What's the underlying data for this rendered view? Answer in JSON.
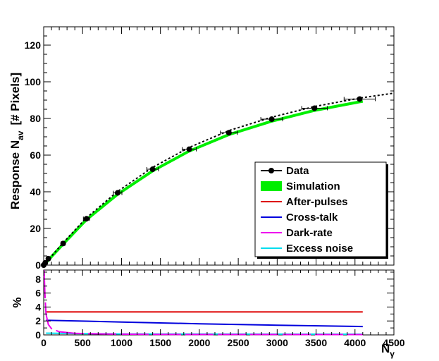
{
  "chart_data": [
    {
      "type": "scatter",
      "panel": "main",
      "xlim": [
        0,
        4500
      ],
      "ylim": [
        0,
        130
      ],
      "ylabel_main": "Response N",
      "ylabel_sub": "av",
      "ylabel_tail": "[# Pixels]",
      "y_ticks": [
        0,
        20,
        40,
        60,
        80,
        100,
        120
      ],
      "grid": false,
      "legend_placement": "bottom-right",
      "series": [
        {
          "name": "Data",
          "color": "#000000",
          "style": "points-with-errorbars",
          "points": [
            {
              "x": 0,
              "y": 0,
              "xerr": 8
            },
            {
              "x": 20,
              "y": 1.2,
              "xerr": 10
            },
            {
              "x": 60,
              "y": 3.5,
              "xerr": 15
            },
            {
              "x": 250,
              "y": 11.8,
              "xerr": 25
            },
            {
              "x": 550,
              "y": 25.3,
              "xerr": 40
            },
            {
              "x": 950,
              "y": 39.4,
              "xerr": 55
            },
            {
              "x": 1400,
              "y": 52.3,
              "xerr": 75
            },
            {
              "x": 1870,
              "y": 63.2,
              "xerr": 90
            },
            {
              "x": 2380,
              "y": 72.2,
              "xerr": 110
            },
            {
              "x": 2930,
              "y": 79.6,
              "xerr": 140
            },
            {
              "x": 3480,
              "y": 85.6,
              "xerr": 165
            },
            {
              "x": 4060,
              "y": 90.6,
              "xerr": 200
            }
          ]
        },
        {
          "name": "",
          "color": "#000000",
          "style": "dashed-fit",
          "x": [
            0,
            250,
            550,
            950,
            1400,
            1870,
            2380,
            2930,
            3480,
            4060,
            4500
          ],
          "y": [
            0,
            12.2,
            25.8,
            40.2,
            53.3,
            64.2,
            73.4,
            80.7,
            86.5,
            91.1,
            93.8
          ]
        },
        {
          "name": "Simulation",
          "color": "#00ee00",
          "style": "band",
          "x": [
            0,
            250,
            550,
            950,
            1400,
            1870,
            2380,
            2930,
            3480,
            4100
          ],
          "y": [
            0,
            11.5,
            24.8,
            38.6,
            51.4,
            62.2,
            71.2,
            78.5,
            84.4,
            89.4
          ]
        }
      ],
      "legend": [
        {
          "label": "Data",
          "kind": "marker",
          "color": "#000000"
        },
        {
          "label": "Simulation",
          "kind": "box",
          "color": "#00ee00"
        },
        {
          "label": "After-pulses",
          "kind": "line",
          "color": "#dd0000"
        },
        {
          "label": "Cross-talk",
          "kind": "line",
          "color": "#0000dd"
        },
        {
          "label": "Dark-rate",
          "kind": "line",
          "color": "#ee00ee"
        },
        {
          "label": "Excess noise",
          "kind": "line",
          "color": "#00ddee"
        }
      ]
    },
    {
      "type": "line",
      "panel": "ratio",
      "xlim": [
        0,
        4500
      ],
      "ylim": [
        0,
        9.3
      ],
      "ylabel": "%",
      "xlabel_main": "N",
      "xlabel_sub": "γ",
      "x_ticks": [
        0,
        500,
        1000,
        1500,
        2000,
        2500,
        3000,
        3500,
        4000,
        4500
      ],
      "y_ticks": [
        0,
        2,
        4,
        6,
        8
      ],
      "grid": false,
      "series": [
        {
          "name": "After-pulses",
          "color": "#dd0000",
          "x": [
            30,
            4100
          ],
          "y": [
            3.3,
            3.3
          ]
        },
        {
          "name": "Cross-talk",
          "color": "#0000dd",
          "x": [
            30,
            1000,
            2000,
            3000,
            4100
          ],
          "y": [
            2.1,
            1.85,
            1.6,
            1.4,
            1.2
          ]
        },
        {
          "name": "Dark-rate",
          "color": "#ee00ee",
          "x": [
            5,
            15,
            30,
            60,
            100,
            200,
            400,
            800,
            1500,
            4100
          ],
          "y": [
            9.3,
            6.0,
            3.0,
            1.5,
            0.9,
            0.45,
            0.22,
            0.12,
            0.07,
            0.05
          ]
        },
        {
          "name": "Excess noise",
          "color": "#00ddee",
          "x": [
            30,
            500,
            1000,
            2000,
            3000,
            4100
          ],
          "y": [
            0.25,
            0.18,
            0.14,
            0.12,
            0.11,
            0.1
          ]
        }
      ]
    }
  ]
}
